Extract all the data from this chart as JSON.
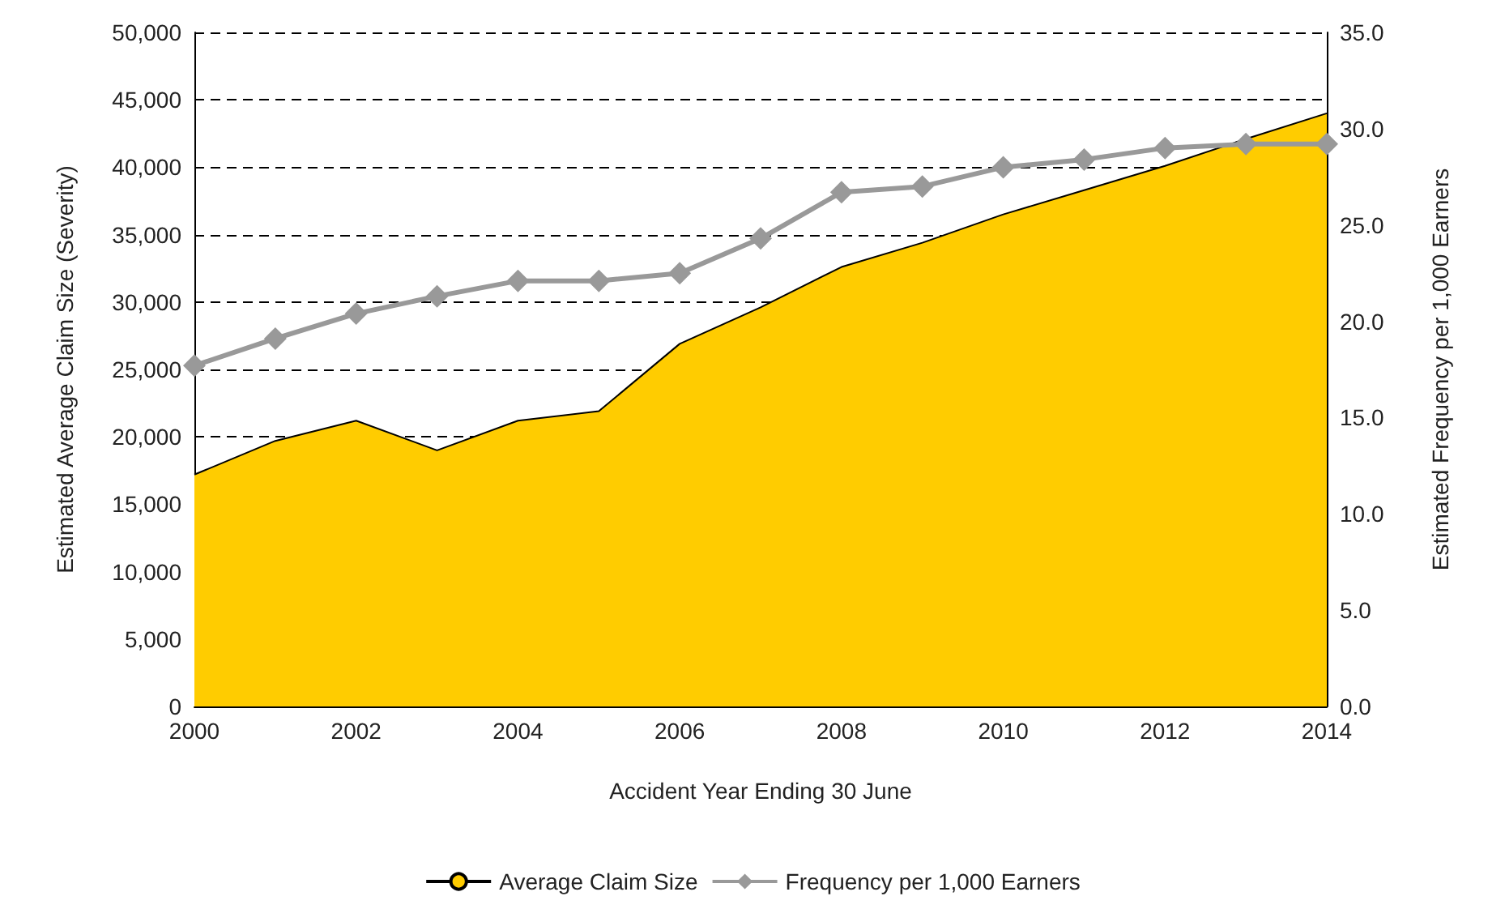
{
  "chart_data": {
    "type": "area",
    "x": [
      2000,
      2001,
      2002,
      2003,
      2004,
      2005,
      2006,
      2007,
      2008,
      2009,
      2010,
      2011,
      2012,
      2013,
      2014
    ],
    "series": [
      {
        "name": "Average Claim Size",
        "color": "#ffcc00",
        "values": [
          17200,
          19700,
          21200,
          19000,
          21200,
          21900,
          26900,
          29600,
          32600,
          34400,
          36500,
          38300,
          40100,
          42100,
          44000
        ]
      },
      {
        "name": "Frequency per 1,000 Earners",
        "type": "line",
        "axis": "y2",
        "color": "#999999",
        "marker": "diamond",
        "values": [
          17.7,
          19.1,
          20.4,
          21.3,
          22.1,
          22.1,
          22.5,
          24.3,
          26.7,
          27.0,
          28.0,
          28.4,
          29.0,
          29.2,
          29.2
        ]
      }
    ],
    "xlabel": "Accident Year Ending 30 June",
    "ylabel": "Estimated Average Claim Size (Severity)",
    "y2label": "Estimated Frequency per 1,000 Earners",
    "xlim": [
      2000,
      2014
    ],
    "xticks": [
      2000,
      2002,
      2004,
      2006,
      2008,
      2010,
      2012,
      2014
    ],
    "ylim": [
      0,
      50000
    ],
    "yticks": [
      0,
      {
        "value": 5000,
        "label": "5,000"
      },
      {
        "value": 10000,
        "label": "10,000"
      },
      {
        "value": 15000,
        "label": "15,000"
      },
      {
        "value": 20000,
        "label": "20,000"
      },
      {
        "value": 25000,
        "label": "25,000"
      },
      {
        "value": 30000,
        "label": "30,000"
      },
      {
        "value": 35000,
        "label": "35,000"
      },
      {
        "value": 40000,
        "label": "40,000"
      },
      {
        "value": 45000,
        "label": "45,000"
      },
      {
        "value": 50000,
        "label": "50,000"
      }
    ],
    "y2lim": [
      0,
      35
    ],
    "y2ticks": [
      {
        "value": 0,
        "label": "0.0"
      },
      {
        "value": 5,
        "label": "5.0"
      },
      {
        "value": 10,
        "label": "10.0"
      },
      {
        "value": 15,
        "label": "15.0"
      },
      {
        "value": 20,
        "label": "20.0"
      },
      {
        "value": 25,
        "label": "25.0"
      },
      {
        "value": 30,
        "label": "30.0"
      },
      {
        "value": 35,
        "label": "35.0"
      }
    ],
    "grid": "y",
    "legend": "bottom"
  }
}
